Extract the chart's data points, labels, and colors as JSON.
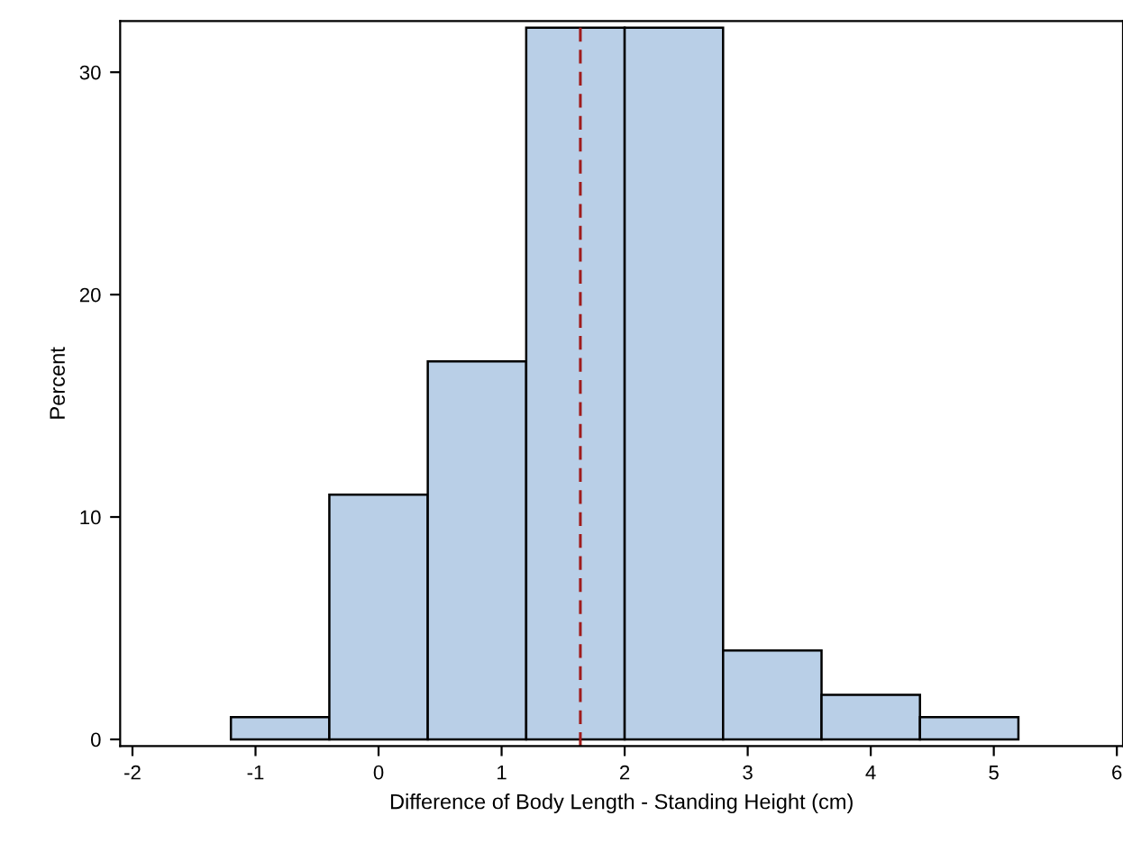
{
  "chart_data": {
    "type": "histogram",
    "xlabel": "Difference of Body Length - Standing Height (cm)",
    "ylabel": "Percent",
    "bins": [
      -1.2,
      -0.4,
      0.4,
      1.2,
      2.0,
      2.8,
      3.6,
      4.4,
      5.2
    ],
    "values": [
      1,
      11,
      17,
      32,
      32,
      4,
      2,
      1
    ],
    "color": "#b9cfe7",
    "xlim": [
      -2.1,
      6.05
    ],
    "xticks": [
      -2,
      -1,
      0,
      1,
      2,
      3,
      4,
      5,
      6
    ],
    "ylim": [
      -0.3,
      32.3
    ],
    "yticks": [
      0,
      10,
      20,
      30
    ],
    "ref_lines": [
      {
        "axis": "x",
        "value": 1.64,
        "color": "#a01c1c",
        "line_style": "dashed"
      }
    ],
    "grid": false
  }
}
